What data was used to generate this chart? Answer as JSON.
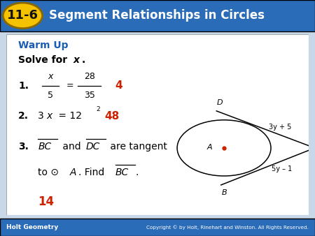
{
  "title": "Segment Relationships in Circles",
  "badge_text": "11-6",
  "header_bg": "#2b6cb8",
  "badge_bg": "#f5c200",
  "badge_border": "#8a6800",
  "warm_up_text": "Warm Up",
  "warm_up_color": "#1a5db5",
  "solve_text": "Solve for ",
  "solve_x": "x",
  "solve_dot": ".",
  "answer_color": "#cc2200",
  "footer_bg": "#2b6cb8",
  "footer_left": "Holt Geometry",
  "footer_right": "Copyright © by Holt, Rinehart and Winston. All Rights Reserved.",
  "outer_bg": "#c8d8e8",
  "content_bg": "#ffffff",
  "label_3y5": "3y + 5",
  "label_5y1": "5y – 1"
}
